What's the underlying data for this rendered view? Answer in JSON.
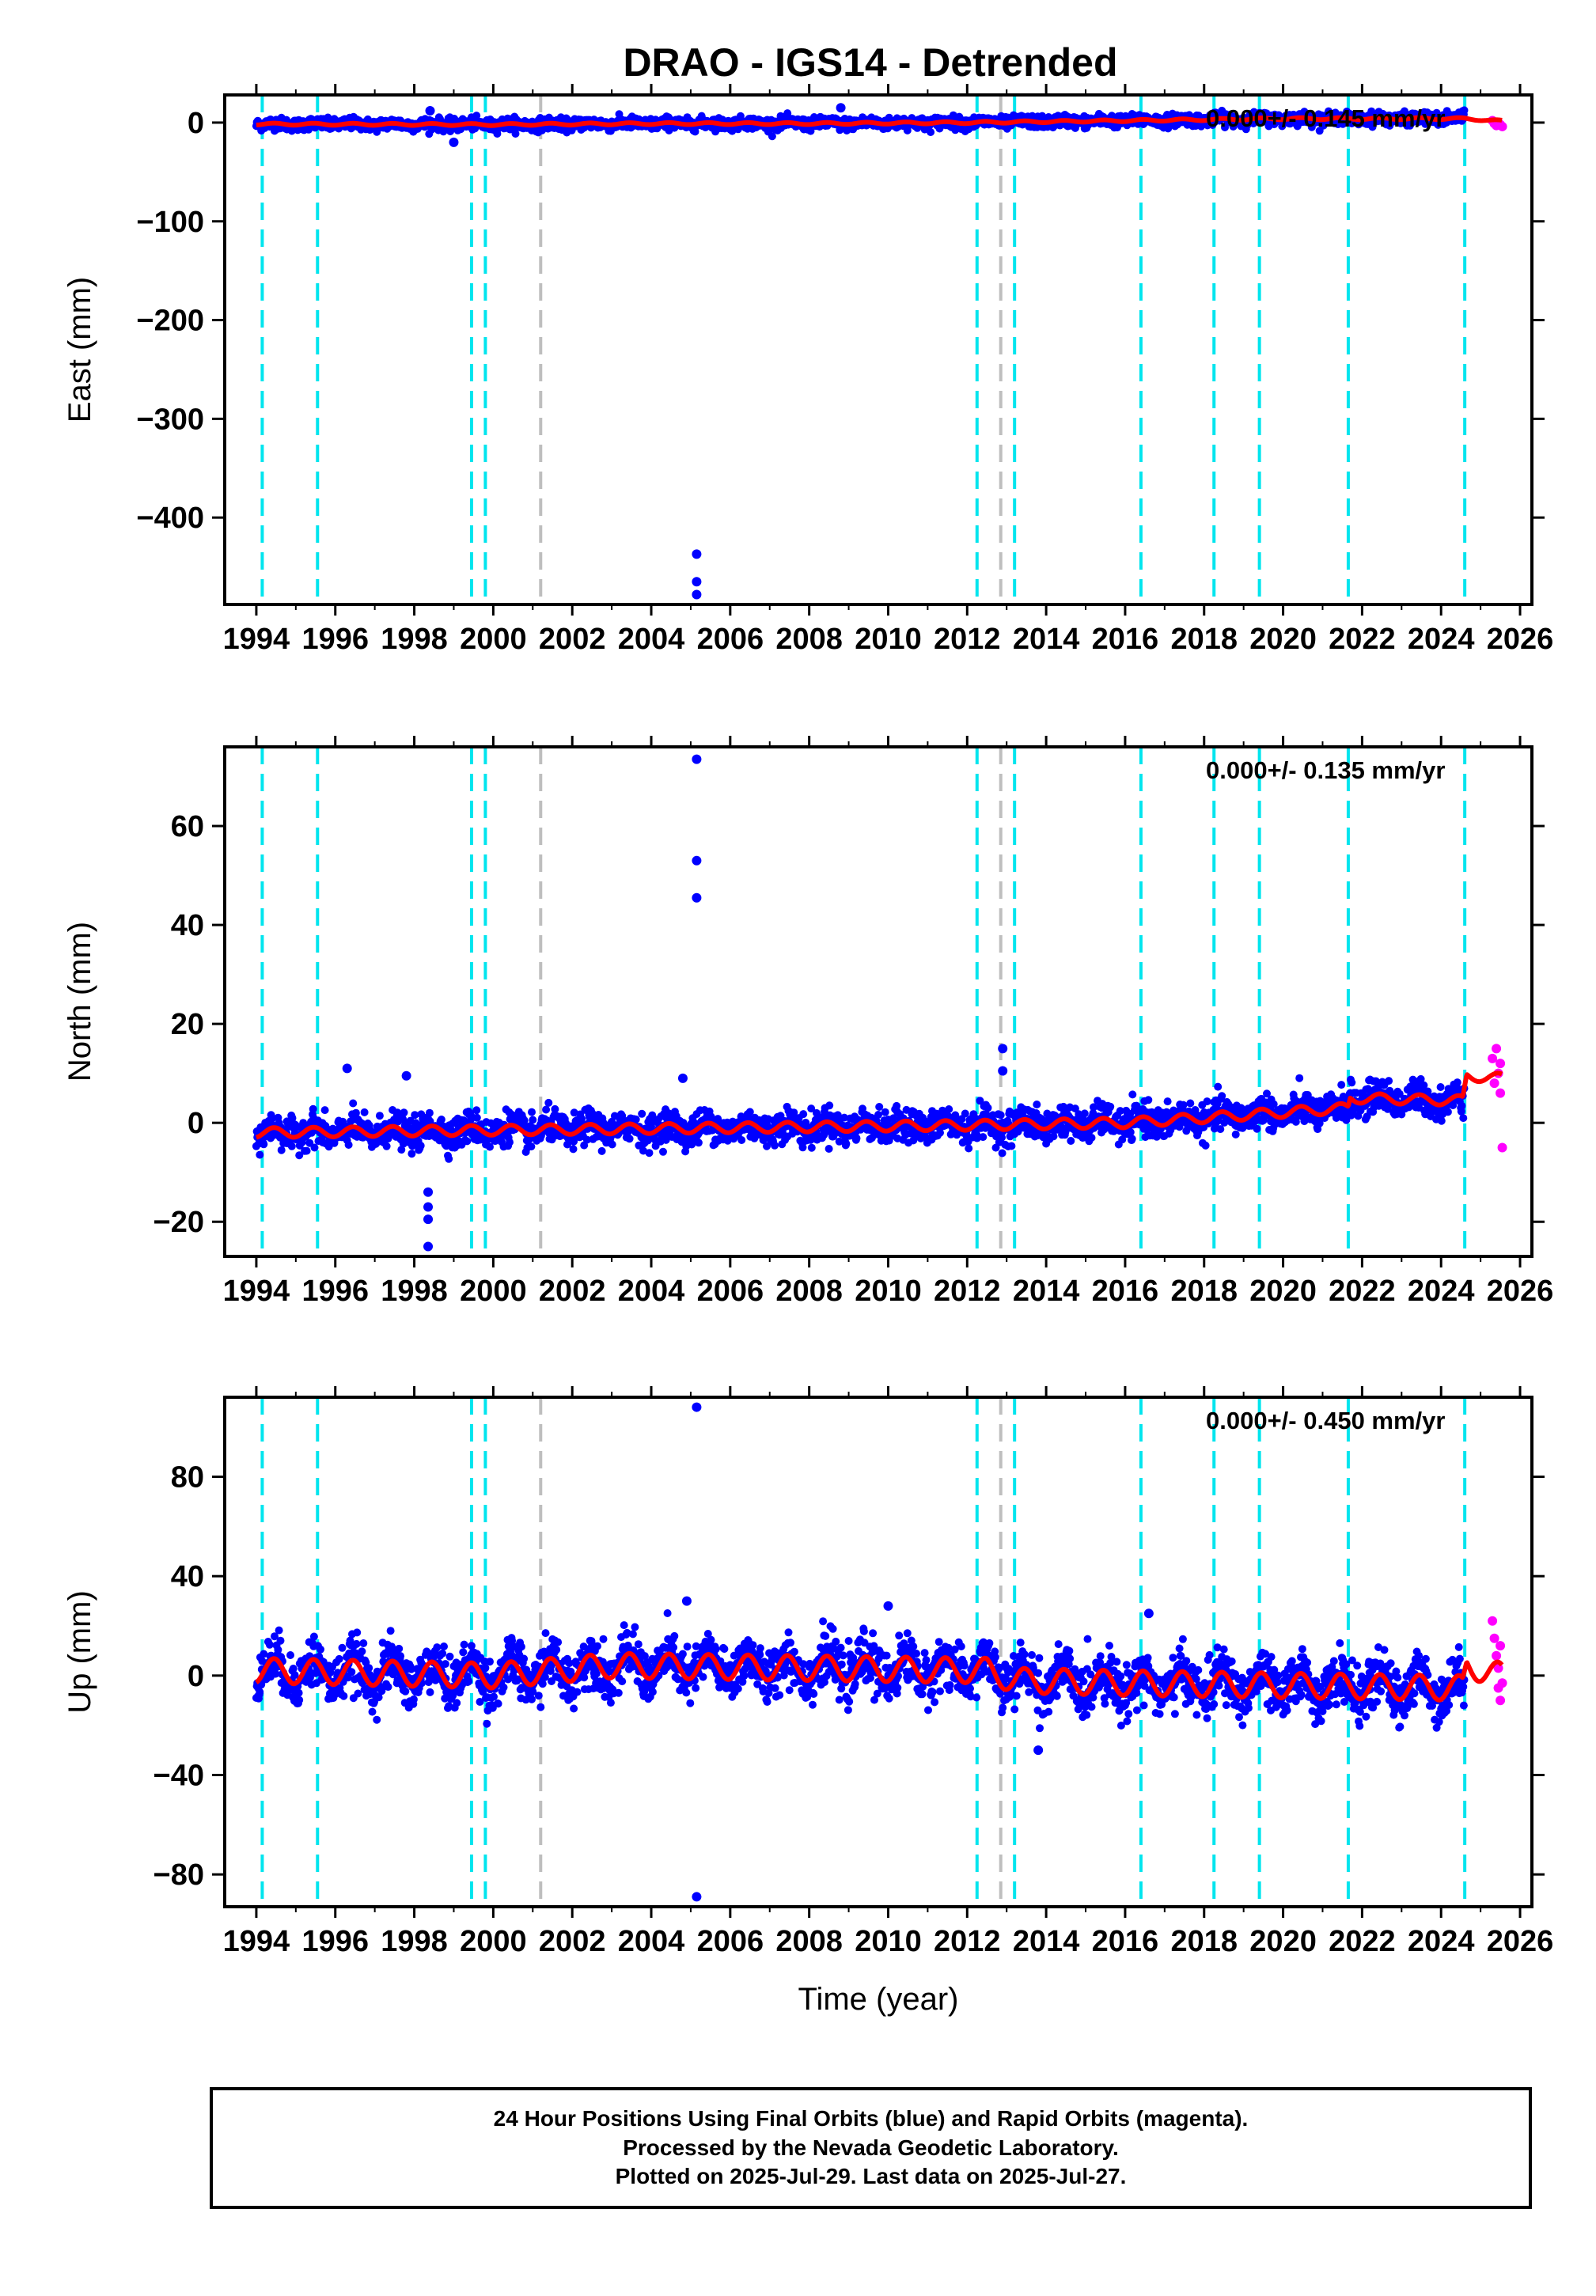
{
  "title": "DRAO - IGS14 - Detrended",
  "footer": {
    "line1": "24 Hour Positions Using Final Orbits (blue) and Rapid Orbits (magenta).",
    "line2": "Processed by the Nevada Geodetic Laboratory.",
    "line3": "Plotted on 2025-Jul-29. Last data on 2025-Jul-27."
  },
  "colors": {
    "final_orbits": "#0000ff",
    "rapid_orbits": "#ff00ff",
    "model": "#ff0000",
    "offset_equipment": "#00e5ee",
    "offset_other": "#bebebe"
  },
  "chart_data": [
    {
      "type": "scatter",
      "ylabel": "East (mm)",
      "xlabel": "",
      "rate_label": "0.000+/- 0.145 mm/yr",
      "xlim": [
        1993.2,
        2026.3
      ],
      "ylim": [
        -488,
        28
      ],
      "xticks": [
        1994,
        1996,
        1998,
        2000,
        2002,
        2004,
        2006,
        2008,
        2010,
        2012,
        2014,
        2016,
        2018,
        2020,
        2022,
        2024,
        2026
      ],
      "yticks": [
        0,
        -100,
        -200,
        -300,
        -400
      ],
      "offsets_cyan": [
        1994.15,
        1995.55,
        1999.45,
        1999.8,
        2012.25,
        2013.2,
        2016.4,
        2018.25,
        2019.4,
        2021.65,
        2024.6
      ],
      "offsets_gray": [
        2001.2,
        2012.85
      ],
      "trend": [
        [
          1994.0,
          -1.5
        ],
        [
          2000.0,
          -2.0
        ],
        [
          2004.0,
          -1.0
        ],
        [
          2008.0,
          -1.0
        ],
        [
          2012.0,
          0.0
        ],
        [
          2016.0,
          2.0
        ],
        [
          2020.0,
          4.0
        ],
        [
          2024.6,
          4.0
        ],
        [
          2025.55,
          1.5
        ]
      ],
      "annual_amp": 1.0,
      "scatter_sd": 3.0,
      "outliers": [
        [
          2005.15,
          -437
        ],
        [
          2005.15,
          -465
        ],
        [
          2005.15,
          -478
        ],
        [
          1999.0,
          -20
        ],
        [
          2008.8,
          15
        ],
        [
          1998.4,
          12
        ]
      ],
      "rapid": [
        [
          2025.3,
          2
        ],
        [
          2025.35,
          -1
        ],
        [
          2025.4,
          -3
        ],
        [
          2025.45,
          0
        ],
        [
          2025.5,
          -2
        ],
        [
          2025.55,
          -4
        ]
      ]
    },
    {
      "type": "scatter",
      "ylabel": "North (mm)",
      "xlabel": "",
      "rate_label": "0.000+/- 0.135 mm/yr",
      "xlim": [
        1993.2,
        2026.3
      ],
      "ylim": [
        -27,
        76
      ],
      "xticks": [
        1994,
        1996,
        1998,
        2000,
        2002,
        2004,
        2006,
        2008,
        2010,
        2012,
        2014,
        2016,
        2018,
        2020,
        2022,
        2024,
        2026
      ],
      "yticks": [
        60,
        40,
        20,
        0,
        -20
      ],
      "offsets_cyan": [
        1994.15,
        1995.55,
        1999.45,
        1999.8,
        2012.25,
        2013.2,
        2016.4,
        2018.25,
        2019.4,
        2021.65,
        2024.6
      ],
      "offsets_gray": [
        2001.2,
        2012.85
      ],
      "trend": [
        [
          1994.0,
          -2.0
        ],
        [
          2000.0,
          -1.5
        ],
        [
          2006.0,
          -1.0
        ],
        [
          2012.0,
          -0.5
        ],
        [
          2016.0,
          0.0
        ],
        [
          2018.0,
          1.0
        ],
        [
          2021.65,
          3.0
        ],
        [
          2021.7,
          5.0
        ],
        [
          2024.55,
          4.5
        ],
        [
          2024.65,
          9.5
        ],
        [
          2025.55,
          9.0
        ]
      ],
      "annual_amp": 1.0,
      "scatter_sd": 1.6,
      "outliers": [
        [
          2005.15,
          73.5
        ],
        [
          2005.15,
          53
        ],
        [
          2005.15,
          45.5
        ],
        [
          2012.9,
          15
        ],
        [
          2012.9,
          10.5
        ],
        [
          1998.35,
          -14
        ],
        [
          1998.35,
          -17
        ],
        [
          1998.35,
          -19.5
        ],
        [
          1998.35,
          -25
        ],
        [
          1996.3,
          11
        ],
        [
          1997.8,
          9.5
        ],
        [
          2004.8,
          9
        ]
      ],
      "rapid": [
        [
          2025.3,
          13
        ],
        [
          2025.35,
          8
        ],
        [
          2025.4,
          15
        ],
        [
          2025.45,
          10
        ],
        [
          2025.5,
          6
        ],
        [
          2025.5,
          12
        ],
        [
          2025.55,
          -5
        ]
      ]
    },
    {
      "type": "scatter",
      "ylabel": "Up (mm)",
      "xlabel": "Time (year)",
      "rate_label": "0.000+/- 0.450 mm/yr",
      "xlim": [
        1993.2,
        2026.3
      ],
      "ylim": [
        -93,
        112
      ],
      "xticks": [
        1994,
        1996,
        1998,
        2000,
        2002,
        2004,
        2006,
        2008,
        2010,
        2012,
        2014,
        2016,
        2018,
        2020,
        2022,
        2024,
        2026
      ],
      "yticks": [
        80,
        40,
        0,
        -40,
        -80
      ],
      "offsets_cyan": [
        1994.15,
        1995.55,
        1999.45,
        1999.8,
        2012.25,
        2013.2,
        2016.4,
        2018.25,
        2019.4,
        2021.65,
        2024.6
      ],
      "offsets_gray": [
        2001.2,
        2012.85
      ],
      "trend": [
        [
          1994.0,
          2.0
        ],
        [
          2000.0,
          0.0
        ],
        [
          2003.0,
          4.0
        ],
        [
          2008.0,
          3.0
        ],
        [
          2012.5,
          2.0
        ],
        [
          2013.2,
          -2.0
        ],
        [
          2016.0,
          -3.0
        ],
        [
          2020.0,
          -4.0
        ],
        [
          2024.55,
          -5.0
        ],
        [
          2024.65,
          4.0
        ],
        [
          2025.55,
          0.0
        ]
      ],
      "annual_amp": 5.0,
      "scatter_sd": 5.0,
      "outliers": [
        [
          2005.15,
          108
        ],
        [
          2005.15,
          -89
        ],
        [
          2013.8,
          -30
        ],
        [
          2016.6,
          25
        ],
        [
          2004.9,
          30
        ],
        [
          2010.0,
          28
        ]
      ],
      "rapid": [
        [
          2025.3,
          22
        ],
        [
          2025.35,
          15
        ],
        [
          2025.4,
          8
        ],
        [
          2025.45,
          3
        ],
        [
          2025.45,
          -5
        ],
        [
          2025.5,
          -10
        ],
        [
          2025.5,
          12
        ],
        [
          2025.55,
          -3
        ]
      ]
    }
  ]
}
